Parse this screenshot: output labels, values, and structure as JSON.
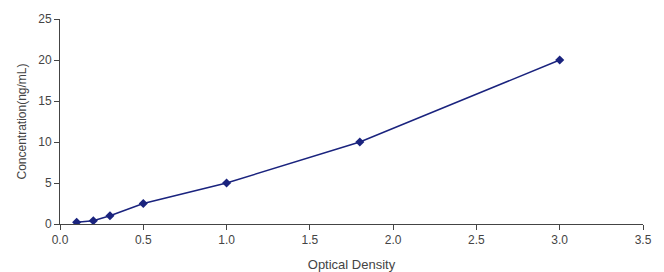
{
  "chart_data": {
    "type": "line",
    "x": [
      0.1,
      0.2,
      0.3,
      0.5,
      1.0,
      1.8,
      3.0
    ],
    "values": [
      0.2,
      0.4,
      1.0,
      2.5,
      5.0,
      10.0,
      20.0
    ],
    "color": "#1a237e",
    "marker": "diamond",
    "line_style": "solid",
    "xlabel": "Optical Density",
    "ylabel": "Concentration(ng/mL)",
    "xlim": [
      0,
      3.5
    ],
    "ylim": [
      0,
      25
    ],
    "xticks": [
      {
        "value": 0,
        "label": "0.0"
      },
      0.5,
      {
        "value": 1.0,
        "label": "1.0"
      },
      1.5,
      {
        "value": 2.0,
        "label": "2.0"
      },
      2.5,
      {
        "value": 3.0,
        "label": "3.0"
      },
      3.5
    ],
    "yticks": [
      0,
      5,
      10,
      15,
      20,
      25
    ],
    "grid": false
  }
}
